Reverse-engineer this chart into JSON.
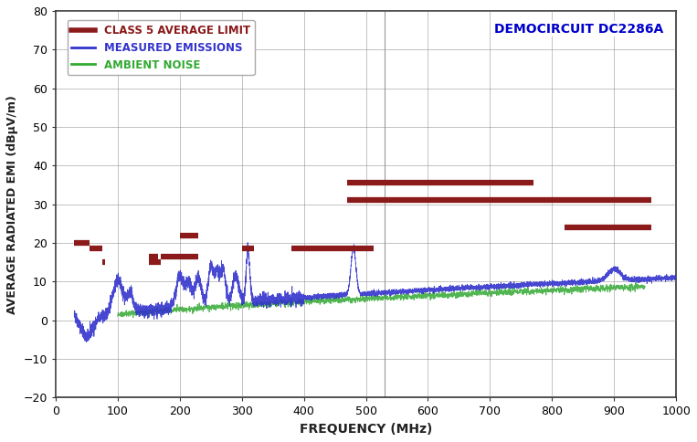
{
  "title": "DEMOCIRCUIT DC2286A",
  "xlabel": "FREQUENCY (MHz)",
  "ylabel": "AVERAGE RADIATED EMI (dBµV/m)",
  "xlim": [
    0,
    1000
  ],
  "ylim": [
    -20,
    80
  ],
  "yticks": [
    -20,
    -10,
    0,
    10,
    20,
    30,
    40,
    50,
    60,
    70,
    80
  ],
  "xticks": [
    0,
    100,
    200,
    300,
    400,
    500,
    600,
    700,
    800,
    900,
    1000
  ],
  "legend_labels": [
    "CLASS 5 AVERAGE LIMIT",
    "MEASURED EMISSIONS",
    "AMBIENT NOISE"
  ],
  "legend_colors": [
    "#8b1a1a",
    "#3333cc",
    "#33aa33"
  ],
  "limit_bars": [
    {
      "x1": 30,
      "x2": 54,
      "y": 20.0
    },
    {
      "x1": 54,
      "x2": 75,
      "y": 18.5
    },
    {
      "x1": 75,
      "x2": 80,
      "y": 15.0
    },
    {
      "x1": 150,
      "x2": 170,
      "y": 15.0
    },
    {
      "x1": 150,
      "x2": 165,
      "y": 16.5
    },
    {
      "x1": 170,
      "x2": 230,
      "y": 16.5
    },
    {
      "x1": 200,
      "x2": 230,
      "y": 22.0
    },
    {
      "x1": 300,
      "x2": 320,
      "y": 18.5
    },
    {
      "x1": 380,
      "x2": 512,
      "y": 18.5
    },
    {
      "x1": 470,
      "x2": 770,
      "y": 35.5
    },
    {
      "x1": 470,
      "x2": 960,
      "y": 31.0
    },
    {
      "x1": 820,
      "x2": 960,
      "y": 24.0
    }
  ],
  "background_color": "#ffffff",
  "grid_color": "#888888",
  "line_color_blue": "#3333cc",
  "line_color_green": "#33aa33",
  "limit_color": "#8b1a1a"
}
